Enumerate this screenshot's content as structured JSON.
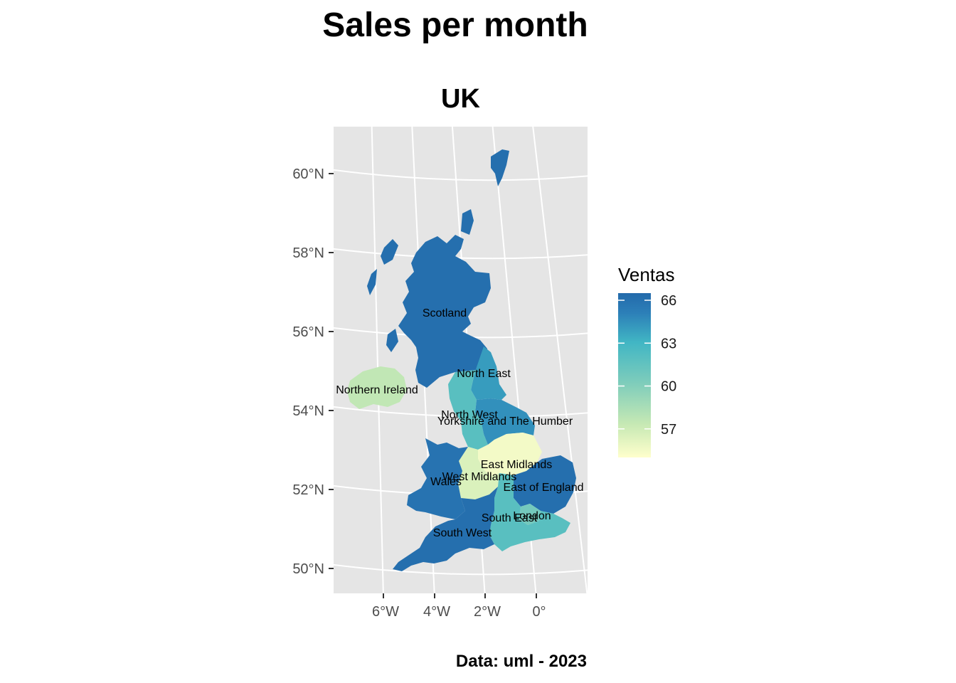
{
  "title": "Sales per month",
  "subtitle": "UK",
  "caption": "Data: uml - 2023",
  "legend": {
    "title": "Ventas",
    "ticks": [
      {
        "value": 66,
        "label": "66"
      },
      {
        "value": 63,
        "label": "63"
      },
      {
        "value": 60,
        "label": "60"
      },
      {
        "value": 57,
        "label": "57"
      }
    ],
    "range": [
      55,
      66.5
    ],
    "palette": [
      "#ffffcc",
      "#c7e9b4",
      "#7fcdbb",
      "#41b6c4",
      "#2c7fb8",
      "#236aab"
    ]
  },
  "axes": {
    "lat_labels": [
      "60°N",
      "58°N",
      "56°N",
      "54°N",
      "52°N",
      "50°N"
    ],
    "lon_labels": [
      "6°W",
      "4°W",
      "2°W",
      "0°"
    ],
    "panel_background": "#e5e5e5",
    "grid_color": "#ffffff"
  },
  "chart_data": {
    "type": "choropleth",
    "value_name": "Ventas",
    "regions": [
      {
        "name": "Scotland",
        "value": 66
      },
      {
        "name": "North East",
        "value": 63
      },
      {
        "name": "Northern Ireland",
        "value": 57.5
      },
      {
        "name": "North West",
        "value": 61
      },
      {
        "name": "Yorkshire and The Humber",
        "value": 63.5
      },
      {
        "name": "East Midlands",
        "value": 55.5
      },
      {
        "name": "West Midlands",
        "value": 56.5
      },
      {
        "name": "Wales",
        "value": 65.5
      },
      {
        "name": "East of England",
        "value": 66
      },
      {
        "name": "London",
        "value": 60
      },
      {
        "name": "South East",
        "value": 61
      },
      {
        "name": "South West",
        "value": 66
      }
    ]
  }
}
